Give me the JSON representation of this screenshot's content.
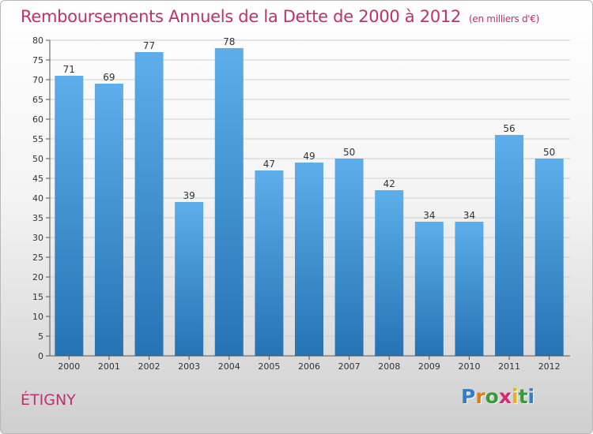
{
  "title": "Remboursements Annuels de la Dette de 2000 à 2012",
  "subtitle": "(en milliers d'€)",
  "commune": "ÉTIGNY",
  "logo": {
    "letters": [
      "P",
      "r",
      "o",
      "x",
      "i",
      "t",
      "i"
    ],
    "colors": [
      "#2e7fd0",
      "#e07b16",
      "#3a9a3a",
      "#d6286a",
      "#e3b21a",
      "#3a9a3a",
      "#2e7fd0"
    ]
  },
  "colors": {
    "accent": "#c0306a",
    "bar_top": "#5daeea",
    "bar_bottom": "#2673b3"
  },
  "chart_data": {
    "type": "bar",
    "title": "Remboursements Annuels de la Dette de 2000 à 2012",
    "subtitle": "(en milliers d'€)",
    "categories": [
      "2000",
      "2001",
      "2002",
      "2003",
      "2004",
      "2005",
      "2006",
      "2007",
      "2008",
      "2009",
      "2010",
      "2011",
      "2012"
    ],
    "values": [
      71,
      69,
      77,
      39,
      78,
      47,
      49,
      50,
      42,
      34,
      34,
      56,
      50
    ],
    "data_labels": [
      "71",
      "69",
      "77",
      "39",
      "78",
      "47",
      "49",
      "50",
      "42",
      "34",
      "34",
      "56",
      "50"
    ],
    "ylim": [
      0,
      80
    ],
    "yticks": [
      0,
      5,
      10,
      15,
      20,
      25,
      30,
      35,
      40,
      45,
      50,
      55,
      60,
      65,
      70,
      75,
      80
    ],
    "grid": true
  }
}
